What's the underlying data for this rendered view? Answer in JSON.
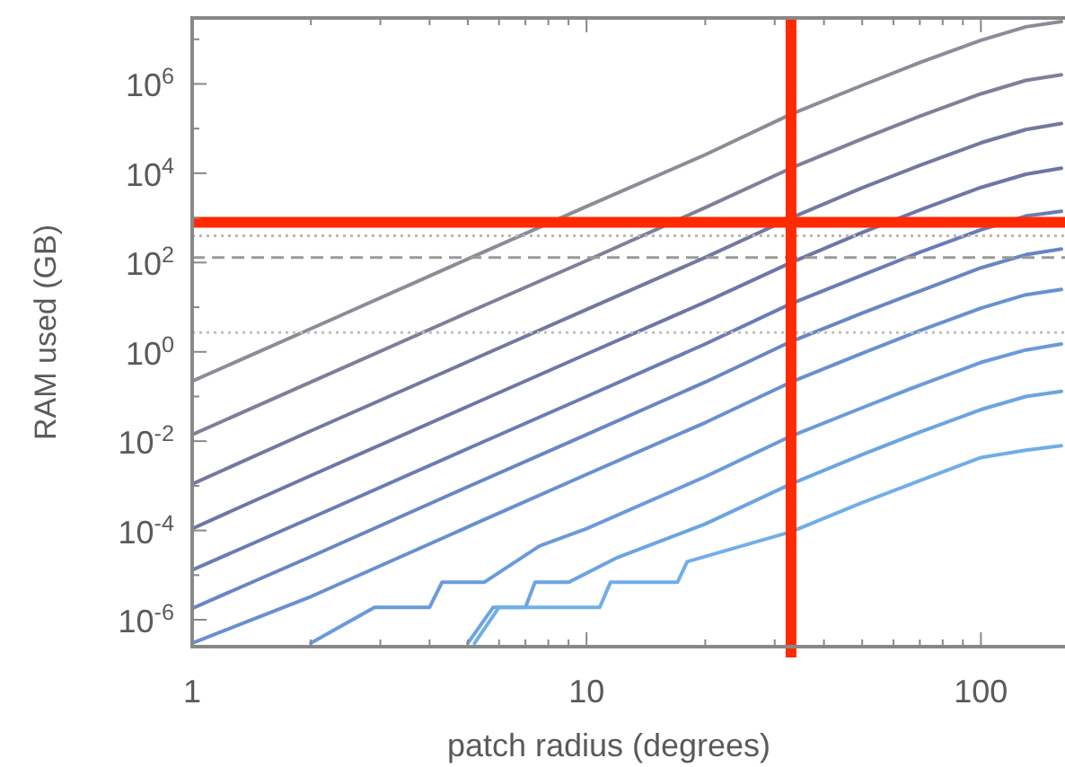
{
  "chart_data": {
    "type": "line",
    "xlabel": "patch radius (degrees)",
    "ylabel": "RAM used (GB)",
    "log": "xy",
    "grid": false,
    "line_style": "solid",
    "xlim": [
      1,
      160
    ],
    "xticks": [
      1,
      {
        "value": 2,
        "label": null
      },
      {
        "value": 3,
        "label": null
      },
      {
        "value": 4,
        "label": null
      },
      {
        "value": 5,
        "label": null
      },
      {
        "value": 6,
        "label": null
      },
      {
        "value": 7,
        "label": null
      },
      {
        "value": 8,
        "label": null
      },
      {
        "value": 9,
        "label": null
      },
      10,
      {
        "value": 20,
        "label": null
      },
      {
        "value": 30,
        "label": null
      },
      {
        "value": 40,
        "label": null
      },
      {
        "value": 50,
        "label": null
      },
      {
        "value": 60,
        "label": null
      },
      {
        "value": 70,
        "label": null
      },
      {
        "value": 80,
        "label": null
      },
      {
        "value": 90,
        "label": null
      },
      100
    ],
    "ylim": [
      2.5e-07,
      30000000.0
    ],
    "yticks": [
      {
        "value": 1e-06,
        "label": "10$^{-6}$"
      },
      {
        "value": 1e-05,
        "label": null
      },
      {
        "value": 0.0001,
        "label": "10$^{-4}$"
      },
      {
        "value": 0.001,
        "label": null
      },
      {
        "value": 0.01,
        "label": "10$^{-2}$"
      },
      {
        "value": 0.1,
        "label": null
      },
      {
        "value": 1,
        "label": "10$^{0}$"
      },
      {
        "value": 10,
        "label": null
      },
      {
        "value": 100,
        "label": "10$^{2}$"
      },
      {
        "value": 1000,
        "label": null
      },
      {
        "value": 10000,
        "label": "10$^{4}$"
      },
      {
        "value": 100000,
        "label": null
      },
      {
        "value": 1000000,
        "label": "10$^{6}$"
      },
      {
        "value": 10000000,
        "label": null
      }
    ],
    "ref_lines": [
      {
        "axis": "y",
        "value": 400,
        "color": "#b8b8b8",
        "line_style": "dotted"
      },
      {
        "axis": "y",
        "value": 130,
        "color": "#9a9a9a",
        "line_style": "dashed"
      },
      {
        "axis": "y",
        "value": 2.7,
        "color": "#c0c0c0",
        "line_style": "dotted"
      },
      {
        "axis": "y",
        "value": 800,
        "color": "#ff2a00",
        "line_style": "solid"
      },
      {
        "axis": "x",
        "value": 33,
        "color": "#ff2a00",
        "line_style": "solid"
      }
    ],
    "series": [
      {
        "color": "#8c8c96",
        "x": [
          1,
          2,
          5,
          10,
          20,
          33,
          50,
          70,
          100,
          130,
          160
        ],
        "values": [
          0.22,
          3.3,
          120,
          1800,
          26000,
          210000,
          930000,
          3000000,
          9500000,
          19000000,
          25000000
        ]
      },
      {
        "color": "#7e8098",
        "x": [
          1,
          2,
          5,
          10,
          20,
          33,
          50,
          70,
          100,
          130,
          160
        ],
        "values": [
          0.014,
          0.21,
          7.6,
          110,
          1700,
          13000,
          59000,
          190000,
          600000,
          1200000,
          1600000
        ]
      },
      {
        "color": "#73789e",
        "x": [
          1,
          2,
          5,
          10,
          20,
          33,
          50,
          70,
          100,
          130,
          160
        ],
        "values": [
          0.0011,
          0.017,
          0.6,
          8.9,
          130,
          1000,
          4700,
          15000,
          48000,
          95000,
          130000
        ]
      },
      {
        "color": "#6d76a6",
        "x": [
          1,
          2,
          5,
          10,
          20,
          33,
          50,
          70,
          100,
          130,
          160
        ],
        "values": [
          0.00011,
          0.0017,
          0.06,
          0.89,
          13,
          100,
          470,
          1500,
          4800,
          9500,
          13000
        ]
      },
      {
        "color": "#6a7cb4",
        "x": [
          1,
          2,
          5,
          10,
          20,
          33,
          50,
          70,
          100,
          130,
          160
        ],
        "values": [
          1.3e-05,
          0.00019,
          0.0068,
          0.1,
          1.5,
          12,
          52,
          170,
          540,
          1100,
          1400
        ]
      },
      {
        "color": "#6886c4",
        "x": [
          1,
          2,
          5,
          10,
          20,
          33,
          50,
          70,
          100,
          130,
          160
        ],
        "values": [
          1.8e-06,
          2.6e-05,
          0.00095,
          0.014,
          0.21,
          1.7,
          7.4,
          23,
          76,
          150,
          200
        ]
      },
      {
        "color": "#6890d0",
        "x": [
          1,
          2,
          5,
          10,
          20,
          33,
          50,
          70,
          100,
          130,
          160
        ],
        "values": [
          3e-07,
          3.3e-06,
          0.00012,
          0.0018,
          0.026,
          0.21,
          0.93,
          3,
          9.5,
          19,
          25
        ]
      },
      {
        "color": "#6a9adb",
        "x": [
          2,
          2.9,
          4,
          4.3,
          5.5,
          7.6,
          10,
          20,
          33,
          50,
          70,
          100,
          130,
          160
        ],
        "values": [
          3e-07,
          1.9e-06,
          1.9e-06,
          6.9e-06,
          6.9e-06,
          4.5e-05,
          0.00011,
          0.0016,
          0.013,
          0.056,
          0.18,
          0.58,
          1.1,
          1.5
        ]
      },
      {
        "color": "#6ca4e2",
        "x": [
          5,
          5.8,
          7,
          7.4,
          9,
          12,
          20,
          33,
          50,
          70,
          100,
          130,
          160
        ],
        "values": [
          3e-07,
          1.9e-06,
          1.9e-06,
          6.9e-06,
          6.9e-06,
          2.5e-05,
          0.00014,
          0.0011,
          0.005,
          0.016,
          0.051,
          0.1,
          0.13
        ]
      },
      {
        "color": "#70aee8",
        "x": [
          5.2,
          6,
          10.8,
          11.5,
          17,
          18,
          33,
          50,
          70,
          100,
          130,
          160
        ],
        "values": [
          3e-07,
          1.9e-06,
          1.9e-06,
          6.9e-06,
          6.9e-06,
          2e-05,
          9.3e-05,
          0.00042,
          0.0013,
          0.0043,
          0.0063,
          0.0079
        ]
      }
    ]
  }
}
